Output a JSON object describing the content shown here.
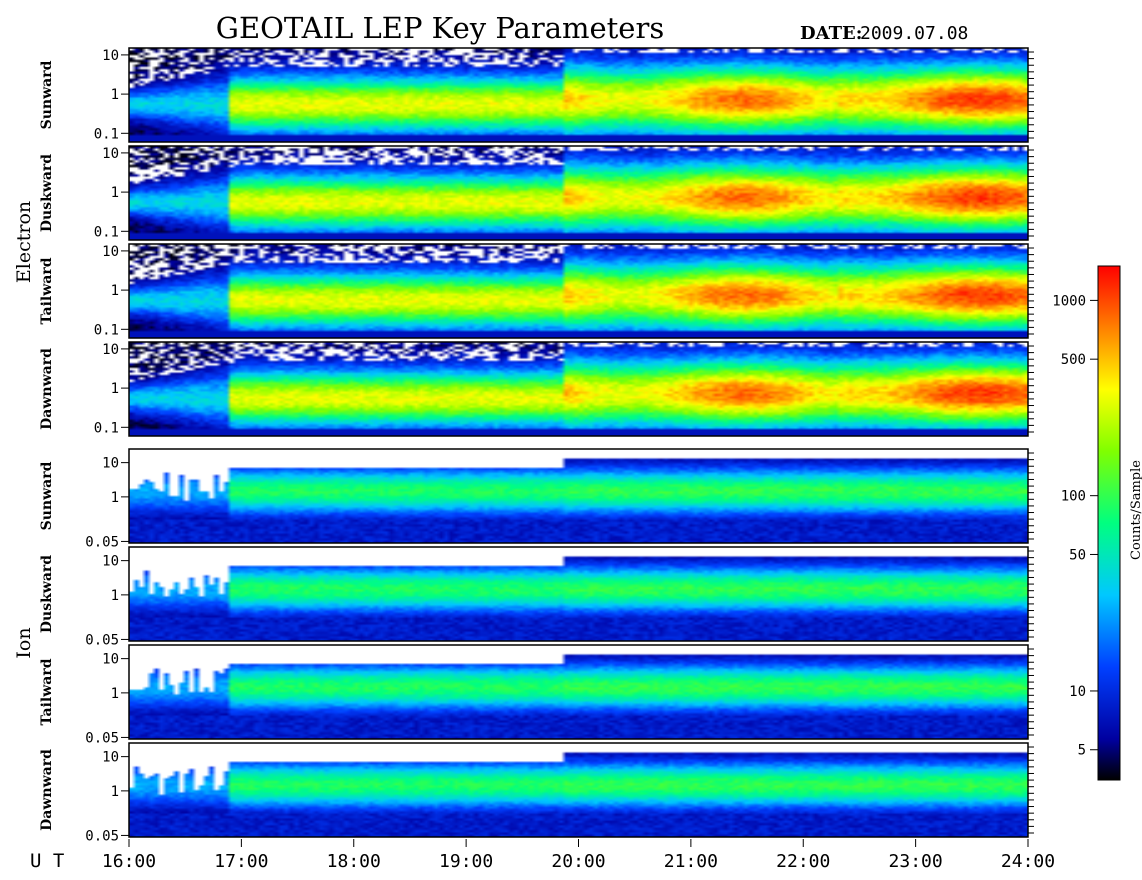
{
  "title": "GEOTAIL LEP Key Parameters",
  "date_label": "DATE:",
  "date_value": "2009.07.08",
  "time_axis_label": "U T",
  "colorbar_label": "Counts/Sample",
  "chart_data": {
    "type": "heatmap",
    "x_ticks": [
      "16:00",
      "17:00",
      "18:00",
      "19:00",
      "20:00",
      "21:00",
      "22:00",
      "23:00",
      "24:00"
    ],
    "x_range_hours": [
      16,
      24
    ],
    "colorbar": {
      "scale": "log",
      "range": [
        3.5,
        1500
      ],
      "ticks": [
        5,
        10,
        50,
        100,
        500,
        1000
      ],
      "tick_labels": [
        "5",
        "10",
        "50",
        "100",
        "500",
        "1000"
      ]
    },
    "groups": [
      {
        "name": "Electron",
        "y_scale": "log",
        "y_range": [
          0.06,
          15
        ],
        "y_ticks": [
          0.1,
          1,
          10
        ],
        "y_tick_labels": [
          "0.1",
          "1",
          "10"
        ],
        "panels": [
          {
            "name": "Sunward"
          },
          {
            "name": "Duskward"
          },
          {
            "name": "Tailward"
          },
          {
            "name": "Dawnward"
          }
        ]
      },
      {
        "name": "Ion",
        "y_scale": "log",
        "y_range": [
          0.045,
          25
        ],
        "y_ticks": [
          0.05,
          1,
          10
        ],
        "y_tick_labels": [
          "0.05",
          "1",
          "10"
        ],
        "panels": [
          {
            "name": "Sunward"
          },
          {
            "name": "Duskward"
          },
          {
            "name": "Tailward"
          },
          {
            "name": "Dawnward"
          }
        ]
      }
    ]
  }
}
